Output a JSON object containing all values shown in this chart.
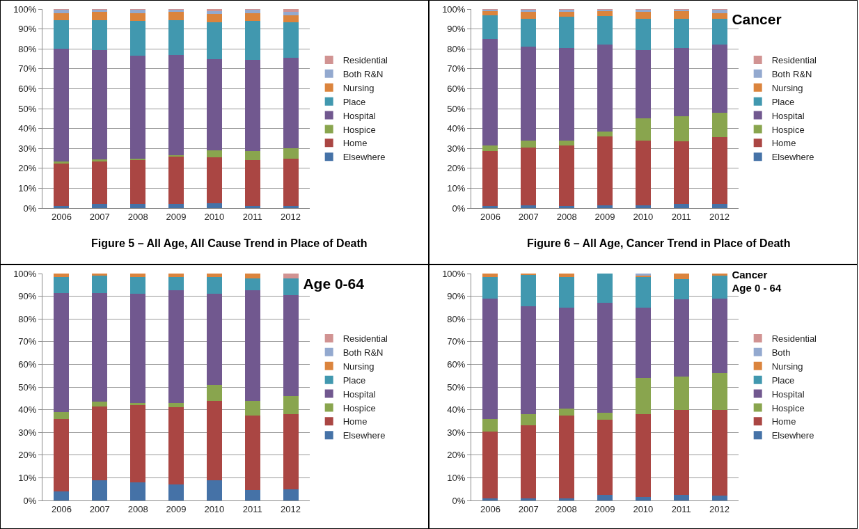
{
  "chart_data": [
    {
      "type": "bar",
      "stacked": true,
      "categories": [
        "2006",
        "2007",
        "2008",
        "2009",
        "2010",
        "2011",
        "2012"
      ],
      "ylim": [
        0,
        100
      ],
      "yticks": [
        {
          "value": 0,
          "label": "0%"
        },
        {
          "value": 10,
          "label": "10%"
        },
        {
          "value": 20,
          "label": "20%"
        },
        {
          "value": 30,
          "label": "30%"
        },
        {
          "value": 40,
          "label": "40%"
        },
        {
          "value": 50,
          "label": "50%"
        },
        {
          "value": 60,
          "label": "60%"
        },
        {
          "value": 70,
          "label": "70%"
        },
        {
          "value": 80,
          "label": "80%"
        },
        {
          "value": 90,
          "label": "90%"
        },
        {
          "value": 100,
          "label": "100%"
        }
      ],
      "grid": "y",
      "legend": "right",
      "annotations": [
        "Figure 5 – All Age, All Cause Trend in Place of Death"
      ],
      "series": [
        {
          "name": "Elsewhere",
          "color": "#4572a7",
          "values": [
            1,
            2,
            2,
            2,
            2.5,
            1,
            1
          ]
        },
        {
          "name": "Home",
          "color": "#aa4643",
          "values": [
            21.5,
            21.5,
            22,
            24,
            23,
            23,
            24
          ]
        },
        {
          "name": "Hospice",
          "color": "#89a54e",
          "values": [
            1,
            1,
            1,
            0.5,
            3.5,
            4.5,
            5
          ]
        },
        {
          "name": "Hospital",
          "color": "#71588f",
          "values": [
            56.5,
            55,
            51.5,
            50.5,
            46,
            46,
            45.5
          ]
        },
        {
          "name": "Place",
          "color": "#4198af",
          "values": [
            14.5,
            15,
            17.5,
            17.5,
            18.5,
            19.5,
            18
          ]
        },
        {
          "name": "Nursing",
          "color": "#db843d",
          "values": [
            3.5,
            4,
            4,
            4,
            4,
            4,
            3.5
          ]
        },
        {
          "name": "Both R&N",
          "color": "#93a9cf",
          "values": [
            1.5,
            1,
            1.5,
            1,
            1.5,
            1.5,
            1.5
          ]
        },
        {
          "name": "Residential",
          "color": "#d19392",
          "values": [
            0.5,
            0.5,
            0.5,
            0.5,
            1,
            0.5,
            1.5
          ]
        }
      ]
    },
    {
      "type": "bar",
      "stacked": true,
      "title": "Cancer",
      "categories": [
        "2006",
        "2007",
        "2008",
        "2009",
        "2010",
        "2011",
        "2012"
      ],
      "ylim": [
        0,
        100
      ],
      "yticks": [
        {
          "value": 0,
          "label": "0%"
        },
        {
          "value": 10,
          "label": "10%"
        },
        {
          "value": 20,
          "label": "20%"
        },
        {
          "value": 30,
          "label": "30%"
        },
        {
          "value": 40,
          "label": "40%"
        },
        {
          "value": 50,
          "label": "50%"
        },
        {
          "value": 60,
          "label": "60%"
        },
        {
          "value": 70,
          "label": "70%"
        },
        {
          "value": 80,
          "label": "80%"
        },
        {
          "value": 90,
          "label": "90%"
        },
        {
          "value": 100,
          "label": "100%"
        }
      ],
      "grid": "y",
      "legend": "right",
      "annotations": [
        "Figure 6 – All Age, Cancer Trend in Place of Death"
      ],
      "series": [
        {
          "name": "Elsewhere",
          "color": "#4572a7",
          "values": [
            1,
            1.5,
            1,
            1.5,
            1.5,
            2,
            2
          ]
        },
        {
          "name": "Home",
          "color": "#aa4643",
          "values": [
            27.5,
            29,
            30.5,
            34.5,
            32.5,
            31.5,
            33.5
          ]
        },
        {
          "name": "Hospice",
          "color": "#89a54e",
          "values": [
            3,
            3.5,
            2.5,
            2.5,
            11,
            12.5,
            12.5
          ]
        },
        {
          "name": "Hospital",
          "color": "#71588f",
          "values": [
            53.5,
            47,
            46.5,
            43.5,
            34.5,
            34.5,
            34
          ]
        },
        {
          "name": "Place",
          "color": "#4198af",
          "values": [
            12,
            14,
            15.5,
            14.5,
            15.5,
            14.5,
            13
          ]
        },
        {
          "name": "Nursing",
          "color": "#db843d",
          "values": [
            2,
            3.5,
            2.5,
            2.5,
            3.5,
            4,
            3
          ]
        },
        {
          "name": "Both R&N",
          "color": "#93a9cf",
          "values": [
            0.5,
            1,
            1,
            0.5,
            1,
            0.5,
            1.5
          ]
        },
        {
          "name": "Residential",
          "color": "#d19392",
          "values": [
            0.5,
            0.5,
            0.5,
            0.5,
            0.5,
            0.5,
            0.5
          ]
        }
      ]
    },
    {
      "type": "bar",
      "stacked": true,
      "title": "Age 0-64",
      "categories": [
        "2006",
        "2007",
        "2008",
        "2009",
        "2010",
        "2011",
        "2012"
      ],
      "ylim": [
        0,
        100
      ],
      "yticks": [
        {
          "value": 0,
          "label": "0%"
        },
        {
          "value": 10,
          "label": "10%"
        },
        {
          "value": 20,
          "label": "20%"
        },
        {
          "value": 30,
          "label": "30%"
        },
        {
          "value": 40,
          "label": "40%"
        },
        {
          "value": 50,
          "label": "50%"
        },
        {
          "value": 60,
          "label": "60%"
        },
        {
          "value": 70,
          "label": "70%"
        },
        {
          "value": 80,
          "label": "80%"
        },
        {
          "value": 90,
          "label": "90%"
        },
        {
          "value": 100,
          "label": "100%"
        }
      ],
      "grid": "y",
      "legend": "right",
      "series": [
        {
          "name": "Elsewhere",
          "color": "#4572a7",
          "values": [
            4,
            9,
            8,
            7,
            9,
            4.5,
            5
          ]
        },
        {
          "name": "Home",
          "color": "#aa4643",
          "values": [
            32,
            32.5,
            34,
            34,
            35,
            33,
            33
          ]
        },
        {
          "name": "Hospice",
          "color": "#89a54e",
          "values": [
            3,
            2,
            1,
            2,
            7,
            6.5,
            8
          ]
        },
        {
          "name": "Hospital",
          "color": "#71588f",
          "values": [
            52.5,
            48,
            48,
            49.5,
            40,
            48.5,
            44.5
          ]
        },
        {
          "name": "Place",
          "color": "#4198af",
          "values": [
            7,
            7.5,
            7.5,
            6,
            7.5,
            5.5,
            7.5
          ]
        },
        {
          "name": "Nursing",
          "color": "#db843d",
          "values": [
            1.5,
            1,
            1.5,
            1.5,
            1.5,
            2,
            0
          ]
        },
        {
          "name": "Both R&N",
          "color": "#93a9cf",
          "values": [
            0,
            0,
            0,
            0,
            0,
            0,
            0
          ]
        },
        {
          "name": "Residential",
          "color": "#d19392",
          "values": [
            0,
            0,
            0,
            0,
            0,
            0,
            2
          ]
        }
      ]
    },
    {
      "type": "bar",
      "stacked": true,
      "title": "Cancer\nAge 0 - 64",
      "categories": [
        "2006",
        "2007",
        "2008",
        "2009",
        "2010",
        "2011",
        "2012"
      ],
      "ylim": [
        0,
        100
      ],
      "yticks": [
        {
          "value": 0,
          "label": "0%"
        },
        {
          "value": 10,
          "label": "10%"
        },
        {
          "value": 20,
          "label": "20%"
        },
        {
          "value": 30,
          "label": "30%"
        },
        {
          "value": 40,
          "label": "40%"
        },
        {
          "value": 50,
          "label": "50%"
        },
        {
          "value": 60,
          "label": "60%"
        },
        {
          "value": 70,
          "label": "70%"
        },
        {
          "value": 80,
          "label": "80%"
        },
        {
          "value": 90,
          "label": "90%"
        },
        {
          "value": 100,
          "label": "100%"
        }
      ],
      "grid": "y",
      "legend": "right",
      "series": [
        {
          "name": "Elsewhere",
          "color": "#4572a7",
          "values": [
            1,
            1,
            1,
            2.5,
            1.5,
            2.5,
            2
          ]
        },
        {
          "name": "Home",
          "color": "#aa4643",
          "values": [
            29.5,
            32,
            36.5,
            33,
            36.5,
            37.5,
            38
          ]
        },
        {
          "name": "Hospice",
          "color": "#89a54e",
          "values": [
            5.5,
            5,
            3,
            3,
            16,
            14.5,
            16
          ]
        },
        {
          "name": "Hospital",
          "color": "#71588f",
          "values": [
            53,
            47.5,
            44.5,
            48.5,
            31,
            34,
            33
          ]
        },
        {
          "name": "Place",
          "color": "#4198af",
          "values": [
            9.5,
            14,
            13.5,
            13,
            13.5,
            9,
            10
          ]
        },
        {
          "name": "Nursing",
          "color": "#db843d",
          "values": [
            1.5,
            0.5,
            1.5,
            0,
            0.5,
            2.5,
            1
          ]
        },
        {
          "name": "Both",
          "color": "#93a9cf",
          "values": [
            0,
            0,
            0,
            0,
            1,
            0,
            0
          ]
        },
        {
          "name": "Residential",
          "color": "#d19392",
          "values": [
            0,
            0,
            0,
            0,
            0,
            0,
            0
          ]
        }
      ]
    }
  ]
}
